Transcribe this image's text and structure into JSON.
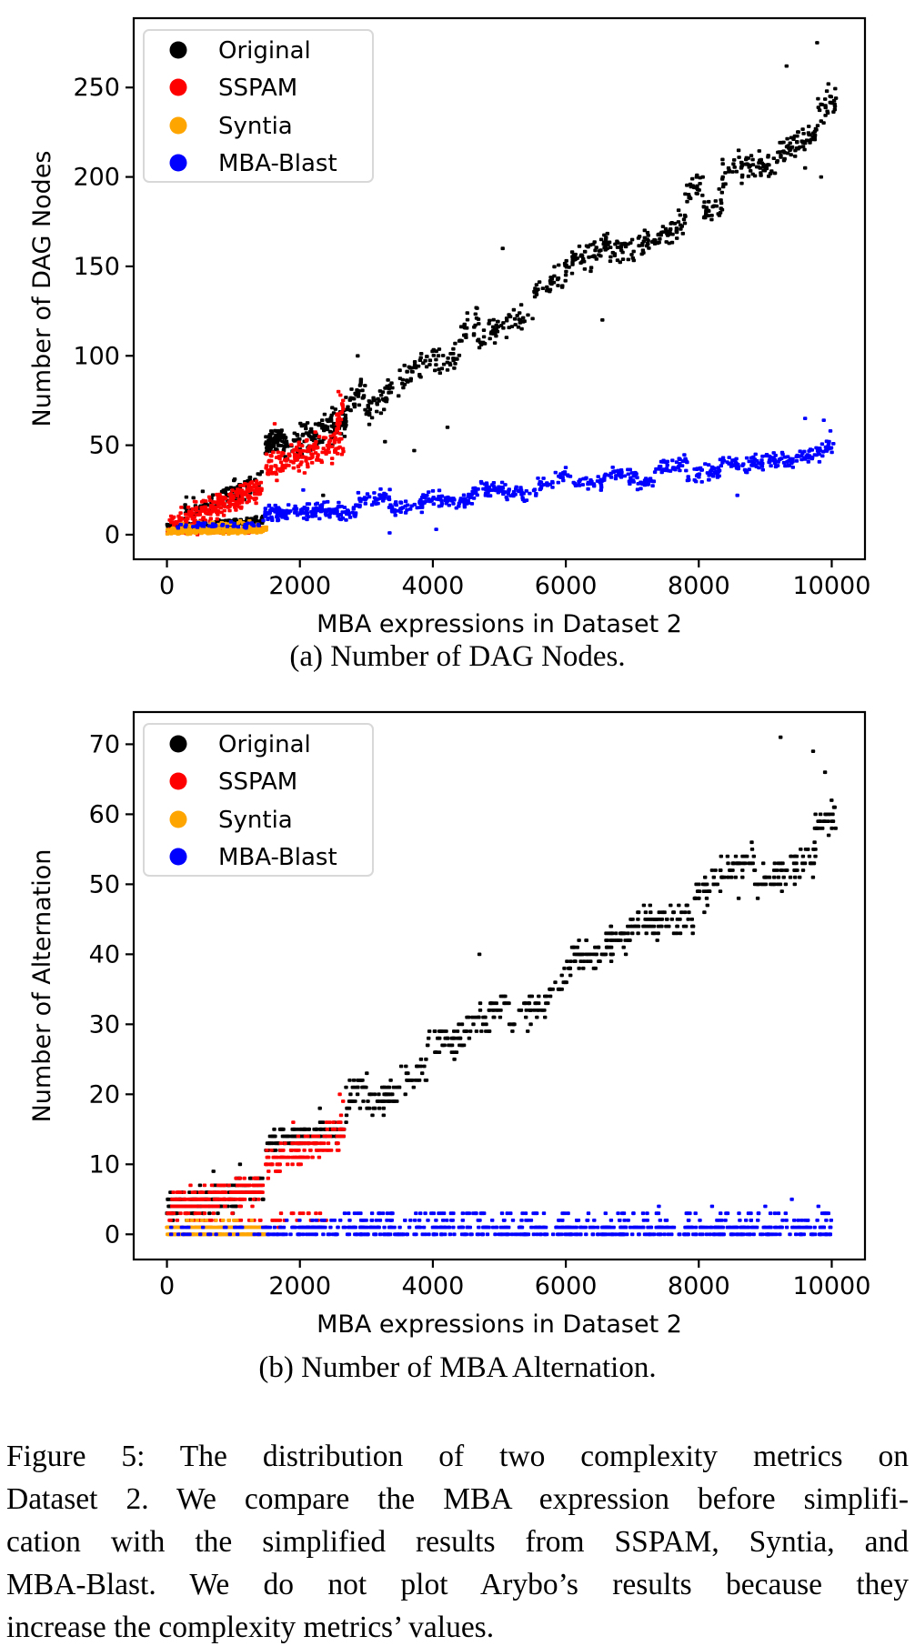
{
  "page": {
    "background": "#ffffff"
  },
  "captions": {
    "sub_a": "(a) Number of DAG Nodes.",
    "sub_b": "(b) Number of MBA Alternation.",
    "figure_lines": [
      "Figure 5: The distribution of two complexity metrics on",
      "Dataset 2. We compare the MBA expression before simplifi-",
      "cation with the simplified results from SSPAM, Syntia, and",
      "MBA-Blast. We do not plot Arybo’s results because they",
      "increase the complexity metrics’ values."
    ]
  },
  "colors": {
    "original": "#000000",
    "sspam": "#ff0000",
    "syntia": "#ffa500",
    "mba_blast": "#0000ff",
    "legend_border": "#d8d8d8",
    "axis": "#000000"
  },
  "chart_data": [
    {
      "id": "dag-nodes",
      "type": "scatter",
      "xlabel": "MBA expressions in Dataset 2",
      "ylabel": "Number of DAG Nodes",
      "xlim": [
        -500,
        10500
      ],
      "ylim": [
        -13.75,
        288.75
      ],
      "xticks": [
        0,
        2000,
        4000,
        6000,
        8000,
        10000
      ],
      "yticks": [
        0,
        50,
        100,
        150,
        200,
        250
      ],
      "grid": false,
      "legend_position": "upper left",
      "quantize_y": false,
      "series": [
        {
          "name": "Original",
          "color": "#000000",
          "seed": 11,
          "summary": "low band y≈3-10 for x 0-1500, jump to y≈45-65 for x 1500-2700, then rises roughly linearly to y≈230-275 at x=10000",
          "segments": [
            {
              "x": [
                0,
                1450
              ],
              "y": [
                3.5,
                8
              ],
              "noise": 3,
              "n": 210,
              "ymin": 0.5
            },
            {
              "x": [
                260,
                1450
              ],
              "y": [
                13,
                30
              ],
              "noise": 8,
              "n": 95
            },
            {
              "x": [
                1480,
                1750
              ],
              "y": [
                50,
                54
              ],
              "noise": 7,
              "n": 70
            },
            {
              "x": [
                1750,
                2700
              ],
              "y": [
                48,
                64
              ],
              "noise": 11,
              "n": 130
            },
            {
              "x": [
                2700,
                10060
              ],
              "y": [
                70,
                233
              ],
              "noise": 16,
              "n": 640,
              "clusters": 26
            }
          ],
          "points": [
            [
              9780,
              275
            ],
            [
              9320,
              262
            ],
            [
              9950,
              252
            ],
            [
              2870,
              100
            ],
            [
              3280,
              52
            ],
            [
              3720,
              47
            ],
            [
              4220,
              60
            ],
            [
              9840,
              200
            ],
            [
              9600,
              205
            ],
            [
              2350,
              22
            ],
            [
              5050,
              160
            ],
            [
              6550,
              120
            ]
          ]
        },
        {
          "name": "SSPAM",
          "color": "#ff0000",
          "seed": 22,
          "summary": "y≈5-30 rising for x 0-1500, y≈35-55 for x 1500-2700 with spike to ≈80 near x=2600; no data beyond x≈2700",
          "segments": [
            {
              "x": [
                30,
                1450
              ],
              "y": [
                6,
                26
              ],
              "noise": 8,
              "n": 225,
              "ymin": 0
            },
            {
              "x": [
                0,
                1450
              ],
              "y": [
                1.5,
                2.5
              ],
              "noise": 1.8,
              "n": 70,
              "ymin": 0
            },
            {
              "x": [
                1480,
                2660
              ],
              "y": [
                37,
                52
              ],
              "noise": 11,
              "n": 160
            },
            {
              "x": [
                2530,
                2660
              ],
              "y": [
                58,
                72
              ],
              "noise": 7,
              "n": 22
            }
          ],
          "points": [
            [
              2610,
              78
            ],
            [
              2650,
              75
            ],
            [
              1620,
              62
            ],
            [
              2580,
              80
            ]
          ]
        },
        {
          "name": "Syntia",
          "color": "#ffa500",
          "seed": 33,
          "summary": "dense band y≈0-6 only for x 0-1500",
          "segments": [
            {
              "x": [
                0,
                1500
              ],
              "y": [
                1.8,
                2.6
              ],
              "noise": 2.2,
              "n": 290,
              "ymin": 0
            },
            {
              "x": [
                100,
                1400
              ],
              "y": [
                5,
                6
              ],
              "noise": 2,
              "n": 40,
              "ymin": 0
            }
          ],
          "points": []
        },
        {
          "name": "MBA-Blast",
          "color": "#0000ff",
          "seed": 44,
          "summary": "sparse y≈2-8 for x 0-1500, then band rising from y≈12 at x=1500 to y≈45 at x=10000 (max ≈65)",
          "segments": [
            {
              "x": [
                90,
                1450
              ],
              "y": [
                4,
                6
              ],
              "noise": 2.8,
              "n": 45,
              "ymin": 0
            },
            {
              "x": [
                1460,
                2600
              ],
              "y": [
                12,
                14
              ],
              "noise": 5.5,
              "n": 150,
              "ymin": 1
            },
            {
              "x": [
                2600,
                10060
              ],
              "y": [
                15,
                46
              ],
              "noise": 8.5,
              "n": 620,
              "clusters": 30,
              "ymin": 2
            }
          ],
          "points": [
            [
              3350,
              1
            ],
            [
              9600,
              65
            ],
            [
              9880,
              64
            ],
            [
              8580,
              22
            ],
            [
              4050,
              3
            ],
            [
              9980,
              58
            ],
            [
              2050,
              25
            ]
          ]
        }
      ]
    },
    {
      "id": "mba-alternation",
      "type": "scatter",
      "xlabel": "MBA expressions in Dataset 2",
      "ylabel": "Number of Alternation",
      "xlim": [
        -500,
        10500
      ],
      "ylim": [
        -3.6,
        74.6
      ],
      "xticks": [
        0,
        2000,
        4000,
        6000,
        8000,
        10000
      ],
      "yticks": [
        0,
        10,
        20,
        30,
        40,
        50,
        60,
        70
      ],
      "grid": false,
      "legend_position": "upper left",
      "quantize_y": true,
      "series": [
        {
          "name": "Original",
          "color": "#000000",
          "seed": 55,
          "summary": "integer rows y≈3-9 for x 0-1500, y≈12-16 for x 1500-2700, rising to y≈50-71 at x=10000",
          "segments": [
            {
              "x": [
                0,
                1450
              ],
              "y": [
                3.8,
                6.5
              ],
              "noise": 2.4,
              "n": 230,
              "ymin": 1
            },
            {
              "x": [
                1480,
                2700
              ],
              "y": [
                13,
                15
              ],
              "noise": 1.8,
              "n": 150,
              "ymin": 9
            },
            {
              "x": [
                2700,
                10060
              ],
              "y": [
                17.5,
                58.5
              ],
              "noise": 4.8,
              "n": 600,
              "clusters": 24,
              "ymin": 5
            }
          ],
          "points": [
            [
              9230,
              71
            ],
            [
              9720,
              69
            ],
            [
              9900,
              66
            ],
            [
              9860,
              58
            ],
            [
              8600,
              48
            ],
            [
              4700,
              40
            ],
            [
              2300,
              18
            ],
            [
              700,
              9
            ],
            [
              1100,
              10
            ]
          ]
        },
        {
          "name": "SSPAM",
          "color": "#ff0000",
          "seed": 66,
          "summary": "rows y≈3-9 for x 0-1500, y≈8-16 for x 1500-2700 (max ≈20), plus sparse rows y 0-3; none beyond x≈2700",
          "segments": [
            {
              "x": [
                0,
                1450
              ],
              "y": [
                3.8,
                6.5
              ],
              "noise": 2.4,
              "n": 210,
              "ymin": 0
            },
            {
              "x": [
                1480,
                2660
              ],
              "y": [
                10,
                14.5
              ],
              "noise": 2.6,
              "n": 140,
              "ymin": 4
            },
            {
              "x": [
                60,
                2400
              ],
              "y": [
                1.6,
                2.2
              ],
              "noise": 1.4,
              "n": 70,
              "ymin": 0
            }
          ],
          "points": [
            [
              2600,
              20
            ],
            [
              2650,
              19
            ],
            [
              2620,
              17
            ],
            [
              1900,
              16
            ]
          ]
        },
        {
          "name": "Syntia",
          "color": "#ffa500",
          "seed": 77,
          "summary": "dense rows y=0 and y=1 only for x 0-1500",
          "segments": [
            {
              "x": [
                0,
                1500
              ],
              "y": [
                0.5,
                0.5
              ],
              "noise": 0.9,
              "n": 330,
              "ymin": 0
            },
            {
              "x": [
                200,
                1300
              ],
              "y": [
                2,
                2
              ],
              "noise": 0.6,
              "n": 15,
              "ymin": 0
            }
          ],
          "points": []
        },
        {
          "name": "MBA-Blast",
          "color": "#0000ff",
          "seed": 88,
          "summary": "dense rows y=0 and y=1 from x≈1500 to 10000, sparser rows y=2 and y=3, rare y=4-5 near right edge",
          "segments": [
            {
              "x": [
                1470,
                10060
              ],
              "y": [
                0.5,
                0.5
              ],
              "noise": 0.95,
              "n": 540,
              "ymin": 0
            },
            {
              "x": [
                1800,
                10060
              ],
              "y": [
                2,
                2
              ],
              "noise": 0.7,
              "n": 100,
              "ymin": 1
            },
            {
              "x": [
                2600,
                10060
              ],
              "y": [
                3,
                3
              ],
              "noise": 0.6,
              "n": 70,
              "ymin": 2
            },
            {
              "x": [
                60,
                1450
              ],
              "y": [
                0.5,
                0.5
              ],
              "noise": 0.8,
              "n": 30,
              "ymin": 0
            }
          ],
          "points": [
            [
              8200,
              4
            ],
            [
              9000,
              4
            ],
            [
              9400,
              5
            ],
            [
              9800,
              4
            ],
            [
              9950,
              3
            ],
            [
              7400,
              4
            ]
          ]
        }
      ]
    }
  ],
  "legend": {
    "entries": [
      {
        "label": "Original",
        "color": "#000000"
      },
      {
        "label": "SSPAM",
        "color": "#ff0000"
      },
      {
        "label": "Syntia",
        "color": "#ffa500"
      },
      {
        "label": "MBA-Blast",
        "color": "#0000ff"
      }
    ]
  }
}
